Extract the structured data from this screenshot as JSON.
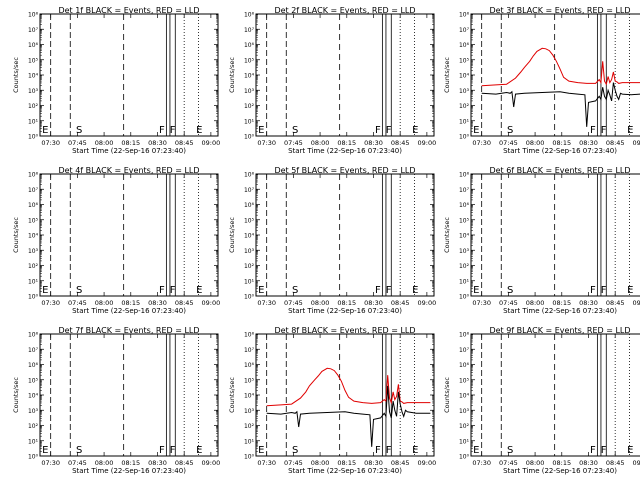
{
  "chart_data": [
    {
      "type": "line",
      "title": "Det 1f BLACK = Events, RED = LLD",
      "xlabel": "Start Time (22-Sep-16 07:23:40)",
      "ylabel": "Counts/sec",
      "yscale": "log",
      "ylim": [
        1,
        100000000
      ],
      "has_data": false,
      "series": []
    },
    {
      "type": "line",
      "title": "Det 2f BLACK = Events, RED = LLD",
      "xlabel": "Start Time (22-Sep-16 07:23:40)",
      "ylabel": "Counts/sec",
      "yscale": "log",
      "ylim": [
        1,
        100000000
      ],
      "has_data": false,
      "series": []
    },
    {
      "type": "line",
      "title": "Det 3f BLACK = Events, RED = LLD",
      "xlabel": "Start Time (22-Sep-16 07:23:40)",
      "ylabel": "Counts/sec",
      "yscale": "log",
      "ylim": [
        1,
        100000000
      ],
      "has_data": true,
      "series": [
        {
          "name": "LLD",
          "color": "#e00000",
          "x": [
            6,
            14,
            20,
            25,
            28,
            30,
            33,
            35,
            37,
            40,
            42,
            44,
            46,
            48,
            50,
            52,
            55,
            60,
            65,
            70,
            72,
            73,
            74,
            75,
            76,
            77,
            78,
            79,
            80,
            81,
            82,
            83,
            85,
            90,
            95,
            98
          ],
          "y": [
            3.3,
            3.35,
            3.4,
            3.8,
            4.2,
            4.5,
            4.9,
            5.25,
            5.55,
            5.75,
            5.72,
            5.6,
            5.3,
            4.9,
            4.4,
            3.85,
            3.6,
            3.5,
            3.45,
            3.45,
            3.7,
            3.5,
            4.9,
            3.6,
            3.4,
            3.9,
            3.5,
            3.7,
            4.2,
            3.6,
            3.55,
            3.45,
            3.5,
            3.5,
            3.5,
            3.5
          ]
        },
        {
          "name": "Events",
          "color": "#000000",
          "x": [
            6,
            14,
            20,
            22,
            23,
            24,
            25,
            30,
            40,
            50,
            55,
            60,
            64,
            65,
            66,
            70,
            72,
            73,
            74,
            75,
            76,
            77,
            78,
            79,
            80,
            81,
            82,
            83,
            84,
            85,
            90,
            95,
            98
          ],
          "y": [
            2.8,
            2.75,
            2.85,
            2.8,
            2.9,
            1.9,
            2.75,
            2.8,
            2.85,
            2.9,
            2.8,
            2.75,
            2.7,
            0.6,
            2.2,
            2.3,
            2.6,
            2.4,
            3.2,
            2.6,
            2.4,
            3.0,
            2.7,
            2.3,
            3.5,
            3.0,
            2.6,
            2.4,
            2.8,
            2.75,
            2.7,
            2.75,
            2.8
          ]
        }
      ]
    },
    {
      "type": "line",
      "title": "Det 4f BLACK = Events, RED = LLD",
      "xlabel": "Start Time (22-Sep-16 07:23:40)",
      "ylabel": "Counts/sec",
      "yscale": "log",
      "ylim": [
        1,
        100000000
      ],
      "has_data": false,
      "series": []
    },
    {
      "type": "line",
      "title": "Det 5f BLACK = Events, RED = LLD",
      "xlabel": "Start Time (22-Sep-16 07:23:40)",
      "ylabel": "Counts/sec",
      "yscale": "log",
      "ylim": [
        1,
        100000000
      ],
      "has_data": false,
      "series": []
    },
    {
      "type": "line",
      "title": "Det 6f BLACK = Events, RED = LLD",
      "xlabel": "Start Time (22-Sep-16 07:23:40)",
      "ylabel": "Counts/sec",
      "yscale": "log",
      "ylim": [
        1,
        100000000
      ],
      "has_data": false,
      "series": []
    },
    {
      "type": "line",
      "title": "Det 7f BLACK = Events, RED = LLD",
      "xlabel": "Start Time (22-Sep-16 07:23:40)",
      "ylabel": "Counts/sec",
      "yscale": "log",
      "ylim": [
        1,
        100000000
      ],
      "has_data": false,
      "series": []
    },
    {
      "type": "line",
      "title": "Det 8f BLACK = Events, RED = LLD",
      "xlabel": "Start Time (22-Sep-16 07:23:40)",
      "ylabel": "Counts/sec",
      "yscale": "log",
      "ylim": [
        1,
        100000000
      ],
      "has_data": true,
      "series": [
        {
          "name": "LLD",
          "color": "#e00000",
          "x": [
            6,
            14,
            20,
            25,
            28,
            30,
            33,
            35,
            37,
            40,
            42,
            44,
            46,
            48,
            50,
            52,
            55,
            60,
            65,
            70,
            72,
            73,
            74,
            75,
            76,
            77,
            78,
            79,
            80,
            81,
            82,
            83,
            85,
            90,
            95,
            98
          ],
          "y": [
            3.3,
            3.35,
            3.4,
            3.8,
            4.2,
            4.6,
            5.0,
            5.25,
            5.55,
            5.75,
            5.72,
            5.6,
            5.3,
            4.9,
            4.3,
            3.85,
            3.6,
            3.5,
            3.45,
            3.5,
            3.7,
            3.6,
            5.3,
            3.8,
            3.5,
            4.2,
            3.7,
            3.9,
            4.7,
            3.6,
            3.55,
            3.45,
            3.5,
            3.5,
            3.5,
            3.5
          ]
        },
        {
          "name": "Events",
          "color": "#000000",
          "x": [
            6,
            14,
            20,
            22,
            23,
            24,
            25,
            30,
            40,
            50,
            55,
            60,
            64,
            65,
            66,
            70,
            72,
            73,
            74,
            75,
            76,
            77,
            78,
            79,
            80,
            81,
            82,
            83,
            84,
            85,
            90,
            95,
            98
          ],
          "y": [
            2.8,
            2.75,
            2.85,
            2.8,
            2.9,
            1.9,
            2.75,
            2.8,
            2.85,
            2.9,
            2.8,
            2.75,
            2.7,
            0.6,
            2.4,
            2.5,
            2.8,
            2.6,
            4.6,
            2.9,
            2.5,
            3.6,
            3.0,
            2.6,
            4.2,
            3.4,
            2.9,
            2.6,
            3.0,
            2.9,
            2.8,
            2.8,
            2.8
          ]
        }
      ]
    },
    {
      "type": "line",
      "title": "Det 9f BLACK = Events, RED = LLD",
      "xlabel": "Start Time (22-Sep-16 07:23:40)",
      "ylabel": "Counts/sec",
      "yscale": "log",
      "ylim": [
        1,
        100000000
      ],
      "has_data": false,
      "series": []
    }
  ],
  "shared_axes": {
    "x_ticks": [
      "07:30",
      "07:45",
      "08:00",
      "08:15",
      "08:30",
      "08:45",
      "09:00"
    ],
    "y_ticks": [
      "10⁰",
      "10¹",
      "10²",
      "10³",
      "10⁴",
      "10⁵",
      "10⁶",
      "10⁷",
      "10⁸"
    ],
    "y_tick_exponents": [
      0,
      1,
      2,
      3,
      4,
      5,
      6,
      7,
      8
    ]
  },
  "markers": {
    "x_ticks_minutes": [
      6,
      21,
      36,
      51,
      66,
      81,
      96
    ],
    "dotdash_lines": [
      6,
      17
    ],
    "dashed_lines": [
      47
    ],
    "solid_lines": [
      71,
      73,
      76
    ],
    "dotted_lines": [
      81,
      89
    ],
    "labels": [
      {
        "text": "E",
        "at": 3
      },
      {
        "text": "S",
        "at": 22
      },
      {
        "text": "F",
        "at": 68.5
      },
      {
        "text": "F",
        "at": 74.5
      },
      {
        "text": "E",
        "at": 89.5
      }
    ]
  },
  "top_letters": {
    "Det 3f BLACK = Events, RED = LLD": "Ș",
    "Det 8f BLACK = Events, RED = LLD": "Ș"
  }
}
